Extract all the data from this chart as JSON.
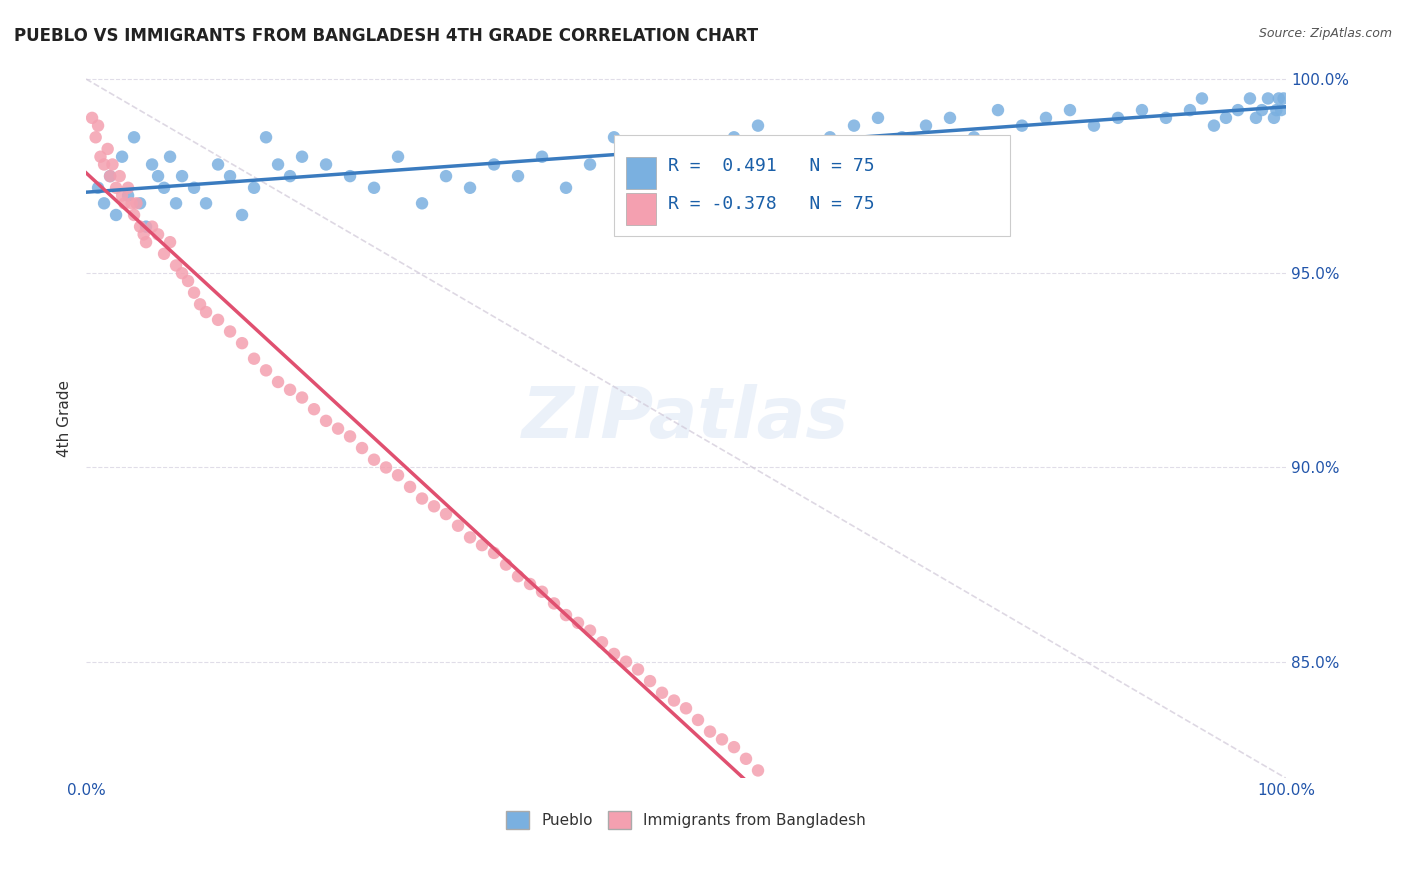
{
  "title": "PUEBLO VS IMMIGRANTS FROM BANGLADESH 4TH GRADE CORRELATION CHART",
  "source": "Source: ZipAtlas.com",
  "xlabel": "",
  "ylabel": "4th Grade",
  "watermark": "ZIPatlas",
  "legend_label_1": "Pueblo",
  "legend_label_2": "Immigrants from Bangladesh",
  "R_pueblo": 0.491,
  "N_pueblo": 75,
  "R_bangladesh": -0.378,
  "N_bangladesh": 75,
  "color_pueblo": "#7ab0e0",
  "color_bangladesh": "#f4a0b0",
  "trendline_pueblo": "#3a7bbf",
  "trendline_bangladesh": "#e05070",
  "trendline_diagonal": "#d0c8d8",
  "xlim": [
    0.0,
    1.0
  ],
  "ylim": [
    0.82,
    1.005
  ],
  "xtick_labels": [
    "0.0%",
    "100.0%"
  ],
  "ytick_labels": [
    "85.0%",
    "90.0%",
    "95.0%",
    "100.0%"
  ],
  "background_color": "#ffffff",
  "grid_color": "#e0dde8",
  "pueblo_points_x": [
    0.01,
    0.02,
    0.015,
    0.025,
    0.03,
    0.035,
    0.04,
    0.045,
    0.05,
    0.055,
    0.06,
    0.065,
    0.07,
    0.075,
    0.08,
    0.09,
    0.1,
    0.11,
    0.12,
    0.13,
    0.14,
    0.15,
    0.16,
    0.17,
    0.18,
    0.2,
    0.22,
    0.24,
    0.26,
    0.28,
    0.3,
    0.32,
    0.34,
    0.36,
    0.38,
    0.4,
    0.42,
    0.44,
    0.46,
    0.48,
    0.5,
    0.52,
    0.54,
    0.56,
    0.58,
    0.6,
    0.62,
    0.64,
    0.66,
    0.68,
    0.7,
    0.72,
    0.74,
    0.76,
    0.78,
    0.8,
    0.82,
    0.84,
    0.86,
    0.88,
    0.9,
    0.92,
    0.93,
    0.94,
    0.95,
    0.96,
    0.97,
    0.975,
    0.98,
    0.985,
    0.99,
    0.992,
    0.994,
    0.996,
    0.998
  ],
  "pueblo_points_y": [
    0.972,
    0.975,
    0.968,
    0.965,
    0.98,
    0.97,
    0.985,
    0.968,
    0.962,
    0.978,
    0.975,
    0.972,
    0.98,
    0.968,
    0.975,
    0.972,
    0.968,
    0.978,
    0.975,
    0.965,
    0.972,
    0.985,
    0.978,
    0.975,
    0.98,
    0.978,
    0.975,
    0.972,
    0.98,
    0.968,
    0.975,
    0.972,
    0.978,
    0.975,
    0.98,
    0.972,
    0.978,
    0.985,
    0.975,
    0.978,
    0.972,
    0.98,
    0.985,
    0.988,
    0.978,
    0.982,
    0.985,
    0.988,
    0.99,
    0.985,
    0.988,
    0.99,
    0.985,
    0.992,
    0.988,
    0.99,
    0.992,
    0.988,
    0.99,
    0.992,
    0.99,
    0.992,
    0.995,
    0.988,
    0.99,
    0.992,
    0.995,
    0.99,
    0.992,
    0.995,
    0.99,
    0.992,
    0.995,
    0.992,
    0.995
  ],
  "bangladesh_points_x": [
    0.005,
    0.008,
    0.01,
    0.012,
    0.015,
    0.018,
    0.02,
    0.022,
    0.025,
    0.028,
    0.03,
    0.032,
    0.035,
    0.038,
    0.04,
    0.042,
    0.045,
    0.048,
    0.05,
    0.055,
    0.06,
    0.065,
    0.07,
    0.075,
    0.08,
    0.085,
    0.09,
    0.095,
    0.1,
    0.11,
    0.12,
    0.13,
    0.14,
    0.15,
    0.16,
    0.17,
    0.18,
    0.19,
    0.2,
    0.21,
    0.22,
    0.23,
    0.24,
    0.25,
    0.26,
    0.27,
    0.28,
    0.29,
    0.3,
    0.31,
    0.32,
    0.33,
    0.34,
    0.35,
    0.36,
    0.37,
    0.38,
    0.39,
    0.4,
    0.41,
    0.42,
    0.43,
    0.44,
    0.45,
    0.46,
    0.47,
    0.48,
    0.49,
    0.5,
    0.51,
    0.52,
    0.53,
    0.54,
    0.55,
    0.56
  ],
  "bangladesh_points_y": [
    0.99,
    0.985,
    0.988,
    0.98,
    0.978,
    0.982,
    0.975,
    0.978,
    0.972,
    0.975,
    0.97,
    0.968,
    0.972,
    0.968,
    0.965,
    0.968,
    0.962,
    0.96,
    0.958,
    0.962,
    0.96,
    0.955,
    0.958,
    0.952,
    0.95,
    0.948,
    0.945,
    0.942,
    0.94,
    0.938,
    0.935,
    0.932,
    0.928,
    0.925,
    0.922,
    0.92,
    0.918,
    0.915,
    0.912,
    0.91,
    0.908,
    0.905,
    0.902,
    0.9,
    0.898,
    0.895,
    0.892,
    0.89,
    0.888,
    0.885,
    0.882,
    0.88,
    0.878,
    0.875,
    0.872,
    0.87,
    0.868,
    0.865,
    0.862,
    0.86,
    0.858,
    0.855,
    0.852,
    0.85,
    0.848,
    0.845,
    0.842,
    0.84,
    0.838,
    0.835,
    0.832,
    0.83,
    0.828,
    0.825,
    0.822
  ]
}
